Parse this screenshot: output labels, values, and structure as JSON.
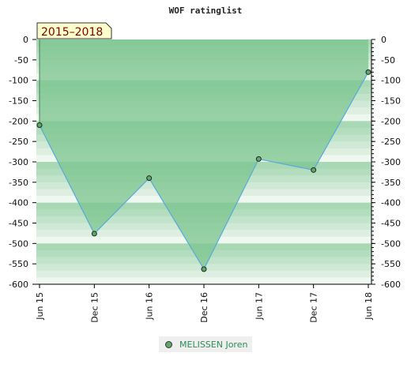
{
  "chart_data": {
    "type": "area",
    "title": "WOF ratinglist",
    "badge": "2015–2018",
    "categories": [
      "Jun 15",
      "Dec 15",
      "Jun 16",
      "Dec 16",
      "Jun 17",
      "Dec 17",
      "Jun 18"
    ],
    "series": [
      {
        "name": "MELISSEN Joren",
        "values": [
          -210,
          -476,
          -340,
          -563,
          -293,
          -320,
          -80
        ]
      }
    ],
    "ylim": [
      -600,
      0
    ],
    "yticks": [
      0,
      -50,
      -100,
      -150,
      -200,
      -250,
      -300,
      -350,
      -400,
      -450,
      -500,
      -550,
      -600
    ],
    "ytick_labels": [
      "0",
      "-50",
      "-100",
      "-150",
      "-200",
      "-250",
      "-300",
      "-350",
      "-400",
      "-450",
      "-500",
      "-550",
      "-600"
    ],
    "xlabel": "",
    "ylabel": "",
    "grid": "banded",
    "legend": "bottom-center",
    "colors": {
      "line": "#55aadd",
      "fill": "#7cc48f",
      "band_dark": "#b4ddbf",
      "band_light": "#f2f8f3",
      "marker": "#5fa86a",
      "badge_bg": "#ffffcc"
    }
  }
}
